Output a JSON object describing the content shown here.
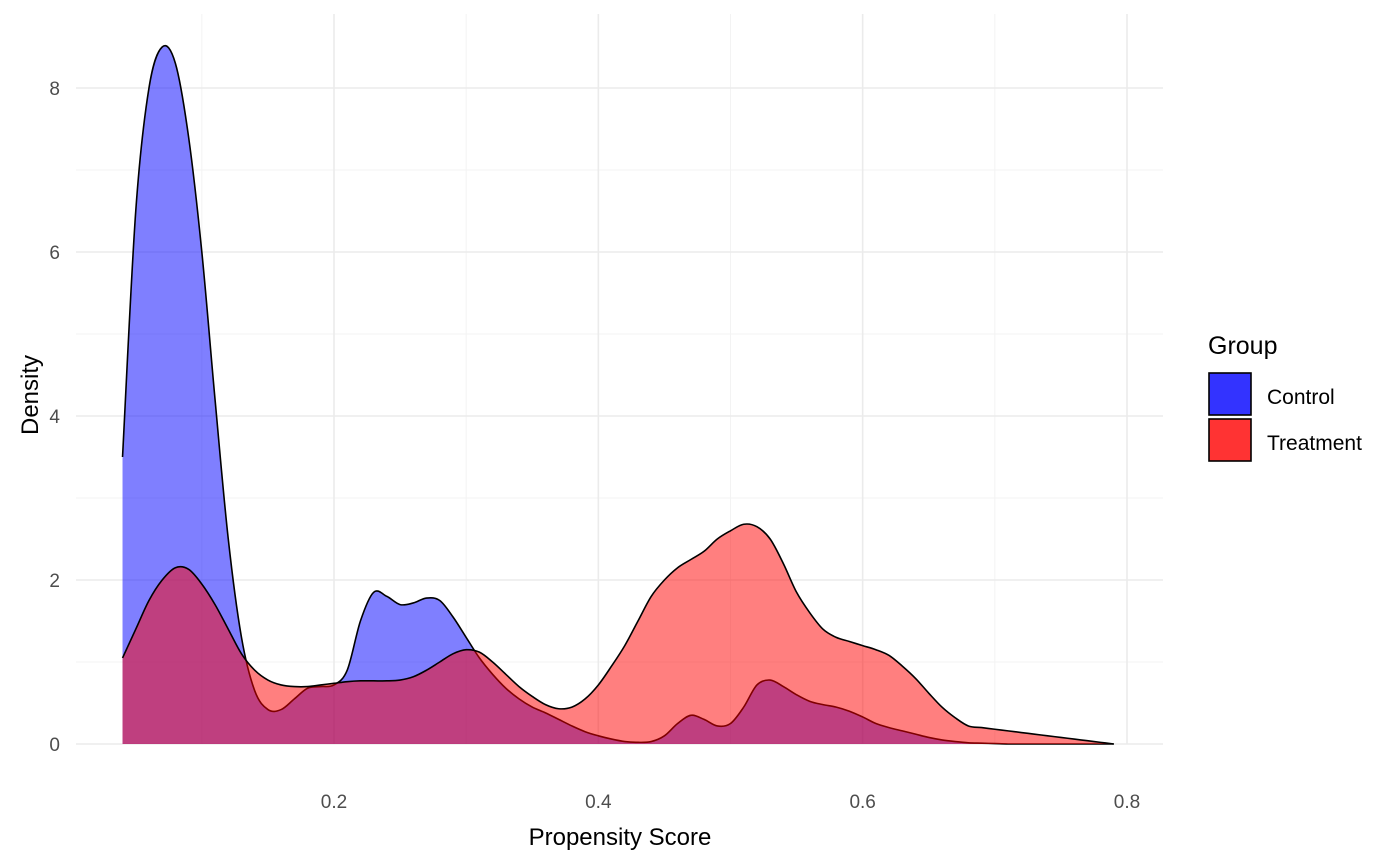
{
  "chart_data": {
    "type": "area",
    "title": "",
    "xlabel": "Propensity Score",
    "ylabel": "Density",
    "xlim": [
      0.0,
      0.8
    ],
    "ylim": [
      0,
      8.6
    ],
    "x_ticks": [
      0.2,
      0.4,
      0.6,
      0.8
    ],
    "x_tick_labels": [
      "0.2",
      "0.4",
      "0.6",
      "0.8"
    ],
    "y_ticks": [
      0,
      2,
      4,
      6,
      8
    ],
    "y_tick_labels": [
      "0",
      "2",
      "4",
      "6",
      "8"
    ],
    "grid": true,
    "legend": {
      "title": "Group",
      "position": "right",
      "entries": [
        {
          "label": "Control",
          "color": "#3333ff"
        },
        {
          "label": "Treatment",
          "color": "#ff3333"
        }
      ]
    },
    "series": [
      {
        "name": "Control",
        "fill": "#0000ff",
        "fill_opacity": 0.5,
        "x": [
          0.04,
          0.05,
          0.06,
          0.07,
          0.08,
          0.09,
          0.1,
          0.11,
          0.12,
          0.13,
          0.14,
          0.15,
          0.16,
          0.17,
          0.18,
          0.19,
          0.2,
          0.21,
          0.22,
          0.23,
          0.24,
          0.25,
          0.26,
          0.27,
          0.28,
          0.29,
          0.3,
          0.31,
          0.32,
          0.33,
          0.34,
          0.35,
          0.36,
          0.37,
          0.38,
          0.39,
          0.4,
          0.41,
          0.42,
          0.43,
          0.44,
          0.45,
          0.46,
          0.47,
          0.48,
          0.49,
          0.5,
          0.51,
          0.52,
          0.53,
          0.54,
          0.55,
          0.56,
          0.57,
          0.58,
          0.59,
          0.6,
          0.61,
          0.62,
          0.63,
          0.64,
          0.65,
          0.66,
          0.67,
          0.68,
          0.69,
          0.7,
          0.71,
          0.72,
          0.73,
          0.74,
          0.75,
          0.76,
          0.77,
          0.78,
          0.79
        ],
        "y": [
          3.5,
          6.5,
          8.0,
          8.5,
          8.3,
          7.4,
          6.0,
          4.2,
          2.5,
          1.3,
          0.65,
          0.42,
          0.42,
          0.55,
          0.68,
          0.7,
          0.72,
          0.9,
          1.5,
          1.85,
          1.8,
          1.7,
          1.72,
          1.78,
          1.75,
          1.55,
          1.3,
          1.05,
          0.85,
          0.68,
          0.55,
          0.45,
          0.38,
          0.3,
          0.22,
          0.15,
          0.1,
          0.06,
          0.03,
          0.02,
          0.03,
          0.1,
          0.25,
          0.35,
          0.3,
          0.22,
          0.25,
          0.45,
          0.72,
          0.78,
          0.7,
          0.6,
          0.52,
          0.48,
          0.45,
          0.4,
          0.33,
          0.25,
          0.2,
          0.16,
          0.12,
          0.08,
          0.05,
          0.03,
          0.015,
          0.01,
          0.005,
          0.0,
          0.0,
          0.0,
          0.0,
          0.0,
          0.0,
          0.0,
          0.0,
          0.0
        ]
      },
      {
        "name": "Treatment",
        "fill": "#ff0000",
        "fill_opacity": 0.5,
        "x": [
          0.04,
          0.05,
          0.06,
          0.07,
          0.08,
          0.09,
          0.1,
          0.11,
          0.12,
          0.13,
          0.14,
          0.15,
          0.16,
          0.17,
          0.18,
          0.19,
          0.2,
          0.21,
          0.22,
          0.23,
          0.24,
          0.25,
          0.26,
          0.27,
          0.28,
          0.29,
          0.3,
          0.31,
          0.32,
          0.33,
          0.34,
          0.35,
          0.36,
          0.37,
          0.38,
          0.39,
          0.4,
          0.41,
          0.42,
          0.43,
          0.44,
          0.45,
          0.46,
          0.47,
          0.48,
          0.49,
          0.5,
          0.51,
          0.52,
          0.53,
          0.54,
          0.55,
          0.56,
          0.57,
          0.58,
          0.59,
          0.6,
          0.61,
          0.62,
          0.63,
          0.64,
          0.65,
          0.66,
          0.67,
          0.68,
          0.69,
          0.7,
          0.71,
          0.72,
          0.73,
          0.74,
          0.75,
          0.76,
          0.77,
          0.78,
          0.79
        ],
        "y": [
          1.05,
          1.4,
          1.75,
          2.0,
          2.15,
          2.13,
          1.95,
          1.7,
          1.4,
          1.1,
          0.9,
          0.78,
          0.72,
          0.7,
          0.7,
          0.72,
          0.74,
          0.76,
          0.77,
          0.77,
          0.77,
          0.78,
          0.82,
          0.9,
          1.0,
          1.1,
          1.15,
          1.12,
          1.0,
          0.85,
          0.7,
          0.58,
          0.48,
          0.43,
          0.45,
          0.55,
          0.72,
          0.95,
          1.2,
          1.5,
          1.8,
          2.0,
          2.15,
          2.25,
          2.35,
          2.5,
          2.6,
          2.68,
          2.65,
          2.5,
          2.2,
          1.85,
          1.6,
          1.4,
          1.3,
          1.25,
          1.2,
          1.15,
          1.08,
          0.95,
          0.8,
          0.62,
          0.45,
          0.32,
          0.22,
          0.2,
          0.18,
          0.16,
          0.14,
          0.12,
          0.1,
          0.08,
          0.06,
          0.04,
          0.02,
          0.0
        ]
      }
    ]
  }
}
